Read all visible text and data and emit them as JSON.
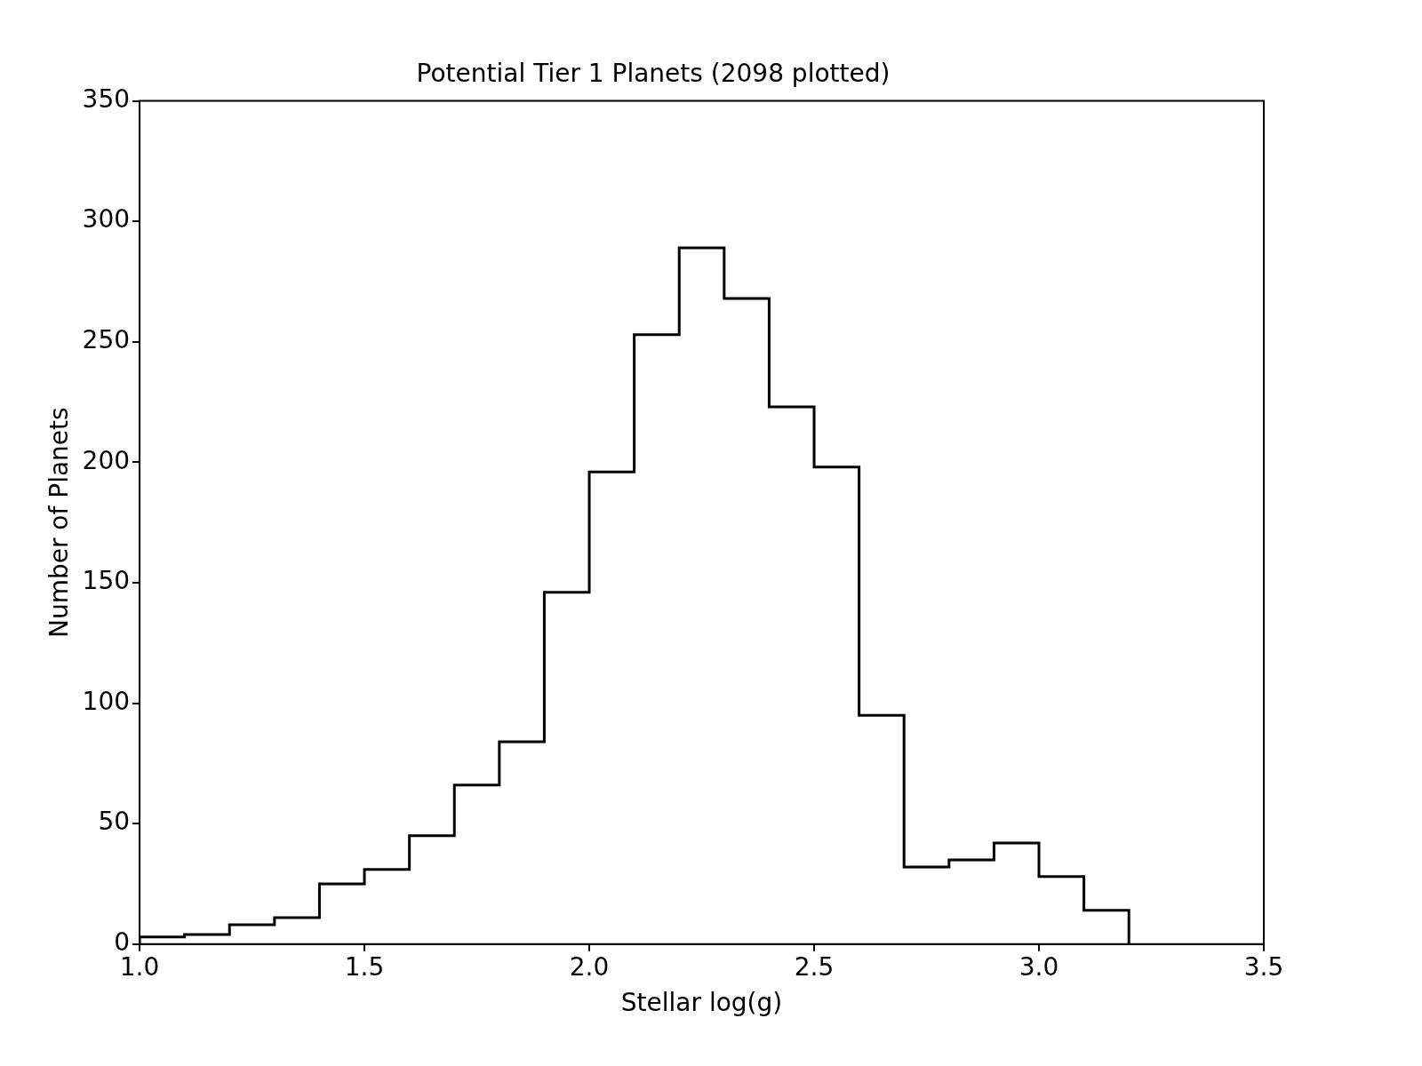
{
  "chart_data": {
    "type": "histogram",
    "title": "Potential Tier 1 Planets (2098 plotted)",
    "xlabel": "Stellar log(g)",
    "ylabel": "Number of Planets",
    "bins": [
      1.0,
      1.1,
      1.2,
      1.3,
      1.4,
      1.5,
      1.6,
      1.7,
      1.8,
      1.9,
      2.0,
      2.1,
      2.2,
      2.3,
      2.4,
      2.5,
      2.6,
      2.7,
      2.8,
      2.9,
      3.0,
      3.1,
      3.2
    ],
    "values": [
      3,
      4,
      8,
      11,
      25,
      31,
      45,
      66,
      84,
      146,
      196,
      253,
      289,
      268,
      223,
      198,
      95,
      32,
      35,
      42,
      28,
      14
    ],
    "color": "#000000",
    "xlim": [
      1.0,
      3.5
    ],
    "xticks": [
      {
        "value": 1.0,
        "label": "1.0"
      },
      {
        "value": 1.5,
        "label": "1.5"
      },
      {
        "value": 2.0,
        "label": "2.0"
      },
      {
        "value": 2.5,
        "label": "2.5"
      },
      {
        "value": 3.0,
        "label": "3.0"
      },
      {
        "value": 3.5,
        "label": "3.5"
      }
    ],
    "ylim": [
      0,
      350
    ],
    "yticks": [
      0,
      50,
      100,
      150,
      200,
      250,
      300,
      350
    ],
    "grid": false,
    "legend": false
  }
}
